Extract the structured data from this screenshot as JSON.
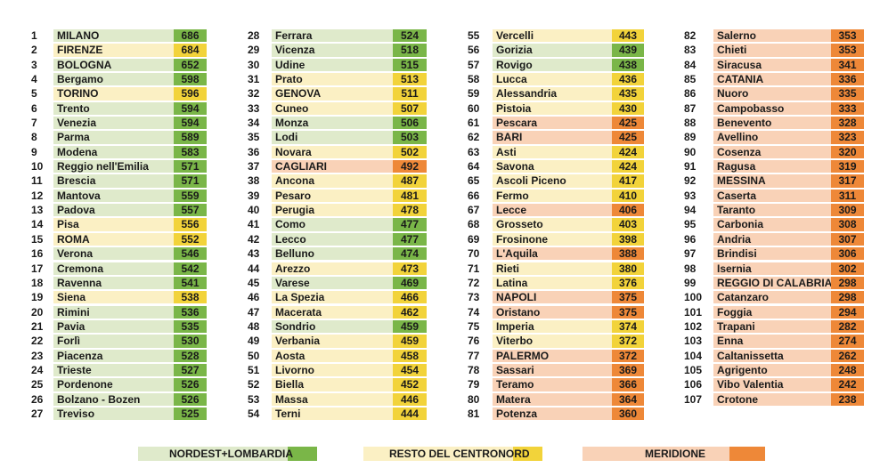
{
  "chart_data": {
    "type": "table",
    "columns": [
      "rank",
      "city",
      "score"
    ],
    "groups": [
      {
        "key": "nord",
        "name": "NORDEST+LOMBARDIA",
        "light": "#dfeacb",
        "dark": "#7ab648"
      },
      {
        "key": "centro",
        "name": "RESTO DEL CENTRONORD",
        "light": "#fbf0c4",
        "dark": "#f2d33a"
      },
      {
        "key": "sud",
        "name": "MERIDIONE",
        "light": "#f9d2b7",
        "dark": "#ee8838"
      }
    ],
    "rows": [
      {
        "rank": "1",
        "city": "MILANO",
        "score": 686,
        "group": "nord"
      },
      {
        "rank": "2",
        "city": "FIRENZE",
        "score": 684,
        "group": "centro"
      },
      {
        "rank": "3",
        "city": "BOLOGNA",
        "score": 652,
        "group": "nord"
      },
      {
        "rank": "4",
        "city": "Bergamo",
        "score": 598,
        "group": "nord"
      },
      {
        "rank": "5",
        "city": "TORINO",
        "score": 596,
        "group": "centro"
      },
      {
        "rank": "6",
        "city": "Trento",
        "score": 594,
        "group": "nord"
      },
      {
        "rank": "7",
        "city": "Venezia",
        "score": 594,
        "group": "nord"
      },
      {
        "rank": "8",
        "city": "Parma",
        "score": 589,
        "group": "nord"
      },
      {
        "rank": "9",
        "city": "Modena",
        "score": 583,
        "group": "nord"
      },
      {
        "rank": "10",
        "city": "Reggio nell'Emilia",
        "score": 571,
        "group": "nord"
      },
      {
        "rank": "11",
        "city": "Brescia",
        "score": 571,
        "group": "nord"
      },
      {
        "rank": "12",
        "city": "Mantova",
        "score": 559,
        "group": "nord"
      },
      {
        "rank": "13",
        "city": "Padova",
        "score": 557,
        "group": "nord"
      },
      {
        "rank": "14",
        "city": "Pisa",
        "score": 556,
        "group": "centro"
      },
      {
        "rank": "15",
        "city": "ROMA",
        "score": 552,
        "group": "centro"
      },
      {
        "rank": "16",
        "city": "Verona",
        "score": 546,
        "group": "nord"
      },
      {
        "rank": "17",
        "city": "Cremona",
        "score": 542,
        "group": "nord"
      },
      {
        "rank": "18",
        "city": "Ravenna",
        "score": 541,
        "group": "nord"
      },
      {
        "rank": "19",
        "city": "Siena",
        "score": 538,
        "group": "centro"
      },
      {
        "rank": "20",
        "city": "Rimini",
        "score": 536,
        "group": "nord"
      },
      {
        "rank": "21",
        "city": "Pavia",
        "score": 535,
        "group": "nord"
      },
      {
        "rank": "22",
        "city": "Forlì",
        "score": 530,
        "group": "nord"
      },
      {
        "rank": "23",
        "city": "Piacenza",
        "score": 528,
        "group": "nord"
      },
      {
        "rank": "24",
        "city": "Trieste",
        "score": 527,
        "group": "nord"
      },
      {
        "rank": "25",
        "city": "Pordenone",
        "score": 526,
        "group": "nord"
      },
      {
        "rank": "26",
        "city": "Bolzano - Bozen",
        "score": 526,
        "group": "nord"
      },
      {
        "rank": "27",
        "city": "Treviso",
        "score": 525,
        "group": "nord"
      },
      {
        "rank": "28",
        "city": "Ferrara",
        "score": 524,
        "group": "nord"
      },
      {
        "rank": "29",
        "city": "Vicenza",
        "score": 518,
        "group": "nord"
      },
      {
        "rank": "30",
        "city": "Udine",
        "score": 515,
        "group": "nord"
      },
      {
        "rank": "31",
        "city": "Prato",
        "score": 513,
        "group": "centro"
      },
      {
        "rank": "32",
        "city": "GENOVA",
        "score": 511,
        "group": "centro"
      },
      {
        "rank": "33",
        "city": "Cuneo",
        "score": 507,
        "group": "centro"
      },
      {
        "rank": "34",
        "city": "Monza",
        "score": 506,
        "group": "nord"
      },
      {
        "rank": "35",
        "city": "Lodi",
        "score": 503,
        "group": "nord"
      },
      {
        "rank": "36",
        "city": "Novara",
        "score": 502,
        "group": "centro"
      },
      {
        "rank": "37",
        "city": "CAGLIARI",
        "score": 492,
        "group": "sud"
      },
      {
        "rank": "38",
        "city": "Ancona",
        "score": 487,
        "group": "centro"
      },
      {
        "rank": "39",
        "city": "Pesaro",
        "score": 481,
        "group": "centro"
      },
      {
        "rank": "40",
        "city": "Perugia",
        "score": 478,
        "group": "centro"
      },
      {
        "rank": "41",
        "city": "Como",
        "score": 477,
        "group": "nord"
      },
      {
        "rank": "42",
        "city": "Lecco",
        "score": 477,
        "group": "nord"
      },
      {
        "rank": "43",
        "city": "Belluno",
        "score": 474,
        "group": "nord"
      },
      {
        "rank": "44",
        "city": "Arezzo",
        "score": 473,
        "group": "centro"
      },
      {
        "rank": "45",
        "city": "Varese",
        "score": 469,
        "group": "nord"
      },
      {
        "rank": "46",
        "city": "La Spezia",
        "score": 466,
        "group": "centro"
      },
      {
        "rank": "47",
        "city": "Macerata",
        "score": 462,
        "group": "centro"
      },
      {
        "rank": "48",
        "city": "Sondrio",
        "score": 459,
        "group": "nord"
      },
      {
        "rank": "49",
        "city": "Verbania",
        "score": 459,
        "group": "centro"
      },
      {
        "rank": "50",
        "city": "Aosta",
        "score": 458,
        "group": "centro"
      },
      {
        "rank": "51",
        "city": "Livorno",
        "score": 454,
        "group": "centro"
      },
      {
        "rank": "52",
        "city": "Biella",
        "score": 452,
        "group": "centro"
      },
      {
        "rank": "53",
        "city": "Massa",
        "score": 446,
        "group": "centro"
      },
      {
        "rank": "54",
        "city": "Terni",
        "score": 444,
        "group": "centro"
      },
      {
        "rank": "55",
        "city": "Vercelli",
        "score": 443,
        "group": "centro"
      },
      {
        "rank": "56",
        "city": "Gorizia",
        "score": 439,
        "group": "nord"
      },
      {
        "rank": "57",
        "city": "Rovigo",
        "score": 438,
        "group": "nord"
      },
      {
        "rank": "58",
        "city": "Lucca",
        "score": 436,
        "group": "centro"
      },
      {
        "rank": "59",
        "city": "Alessandria",
        "score": 435,
        "group": "centro"
      },
      {
        "rank": "60",
        "city": "Pistoia",
        "score": 430,
        "group": "centro"
      },
      {
        "rank": "61",
        "city": "Pescara",
        "score": 425,
        "group": "sud"
      },
      {
        "rank": "62",
        "city": "BARI",
        "score": 425,
        "group": "sud"
      },
      {
        "rank": "63",
        "city": "Asti",
        "score": 424,
        "group": "centro"
      },
      {
        "rank": "64",
        "city": "Savona",
        "score": 424,
        "group": "centro"
      },
      {
        "rank": "65",
        "city": "Ascoli Piceno",
        "score": 417,
        "group": "centro"
      },
      {
        "rank": "66",
        "city": "Fermo",
        "score": 410,
        "group": "centro"
      },
      {
        "rank": "67",
        "city": "Lecce",
        "score": 406,
        "group": "sud"
      },
      {
        "rank": "68",
        "city": "Grosseto",
        "score": 403,
        "group": "centro"
      },
      {
        "rank": "69",
        "city": "Frosinone",
        "score": 398,
        "group": "centro"
      },
      {
        "rank": "70",
        "city": "L'Aquila",
        "score": 388,
        "group": "sud"
      },
      {
        "rank": "71",
        "city": "Rieti",
        "score": 380,
        "group": "centro"
      },
      {
        "rank": "72",
        "city": "Latina",
        "score": 376,
        "group": "centro"
      },
      {
        "rank": "73",
        "city": "NAPOLI",
        "score": 375,
        "group": "sud"
      },
      {
        "rank": "74",
        "city": "Oristano",
        "score": 375,
        "group": "sud"
      },
      {
        "rank": "75",
        "city": "Imperia",
        "score": 374,
        "group": "centro"
      },
      {
        "rank": "76",
        "city": "Viterbo",
        "score": 372,
        "group": "centro"
      },
      {
        "rank": "77",
        "city": "PALERMO",
        "score": 372,
        "group": "sud"
      },
      {
        "rank": "78",
        "city": "Sassari",
        "score": 369,
        "group": "sud"
      },
      {
        "rank": "79",
        "city": "Teramo",
        "score": 366,
        "group": "sud"
      },
      {
        "rank": "80",
        "city": "Matera",
        "score": 364,
        "group": "sud"
      },
      {
        "rank": "81",
        "city": "Potenza",
        "score": 360,
        "group": "sud"
      },
      {
        "rank": "82",
        "city": "Salerno",
        "score": 353,
        "group": "sud"
      },
      {
        "rank": "83",
        "city": "Chieti",
        "score": 353,
        "group": "sud"
      },
      {
        "rank": "84",
        "city": "Siracusa",
        "score": 341,
        "group": "sud"
      },
      {
        "rank": "85",
        "city": "CATANIA",
        "score": 336,
        "group": "sud"
      },
      {
        "rank": "86",
        "city": "Nuoro",
        "score": 335,
        "group": "sud"
      },
      {
        "rank": "87",
        "city": "Campobasso",
        "score": 333,
        "group": "sud"
      },
      {
        "rank": "88",
        "city": "Benevento",
        "score": 328,
        "group": "sud"
      },
      {
        "rank": "89",
        "city": "Avellino",
        "score": 323,
        "group": "sud"
      },
      {
        "rank": "90",
        "city": "Cosenza",
        "score": 320,
        "group": "sud"
      },
      {
        "rank": "91",
        "city": "Ragusa",
        "score": 319,
        "group": "sud"
      },
      {
        "rank": "92",
        "city": "MESSINA",
        "score": 317,
        "group": "sud"
      },
      {
        "rank": "93",
        "city": "Caserta",
        "score": 311,
        "group": "sud"
      },
      {
        "rank": "94",
        "city": "Taranto",
        "score": 309,
        "group": "sud"
      },
      {
        "rank": "95",
        "city": "Carbonia",
        "score": 308,
        "group": "sud"
      },
      {
        "rank": "96",
        "city": "Andria",
        "score": 307,
        "group": "sud"
      },
      {
        "rank": "97",
        "city": "Brindisi",
        "score": 306,
        "group": "sud"
      },
      {
        "rank": "98",
        "city": "Isernia",
        "score": 302,
        "group": "sud"
      },
      {
        "rank": "99",
        "city": "REGGIO DI CALABRIA",
        "score": 298,
        "group": "sud"
      },
      {
        "rank": "100",
        "city": "Catanzaro",
        "score": 298,
        "group": "sud"
      },
      {
        "rank": "101",
        "city": "Foggia",
        "score": 294,
        "group": "sud"
      },
      {
        "rank": "102",
        "city": "Trapani",
        "score": 282,
        "group": "sud"
      },
      {
        "rank": "103",
        "city": "Enna",
        "score": 274,
        "group": "sud"
      },
      {
        "rank": "104",
        "city": "Caltanissetta",
        "score": 262,
        "group": "sud"
      },
      {
        "rank": "105",
        "city": "Agrigento",
        "score": 248,
        "group": "sud"
      },
      {
        "rank": "106",
        "city": "Vibo Valentia",
        "score": 242,
        "group": "sud"
      },
      {
        "rank": "107",
        "city": "Crotone",
        "score": 238,
        "group": "sud"
      }
    ]
  }
}
